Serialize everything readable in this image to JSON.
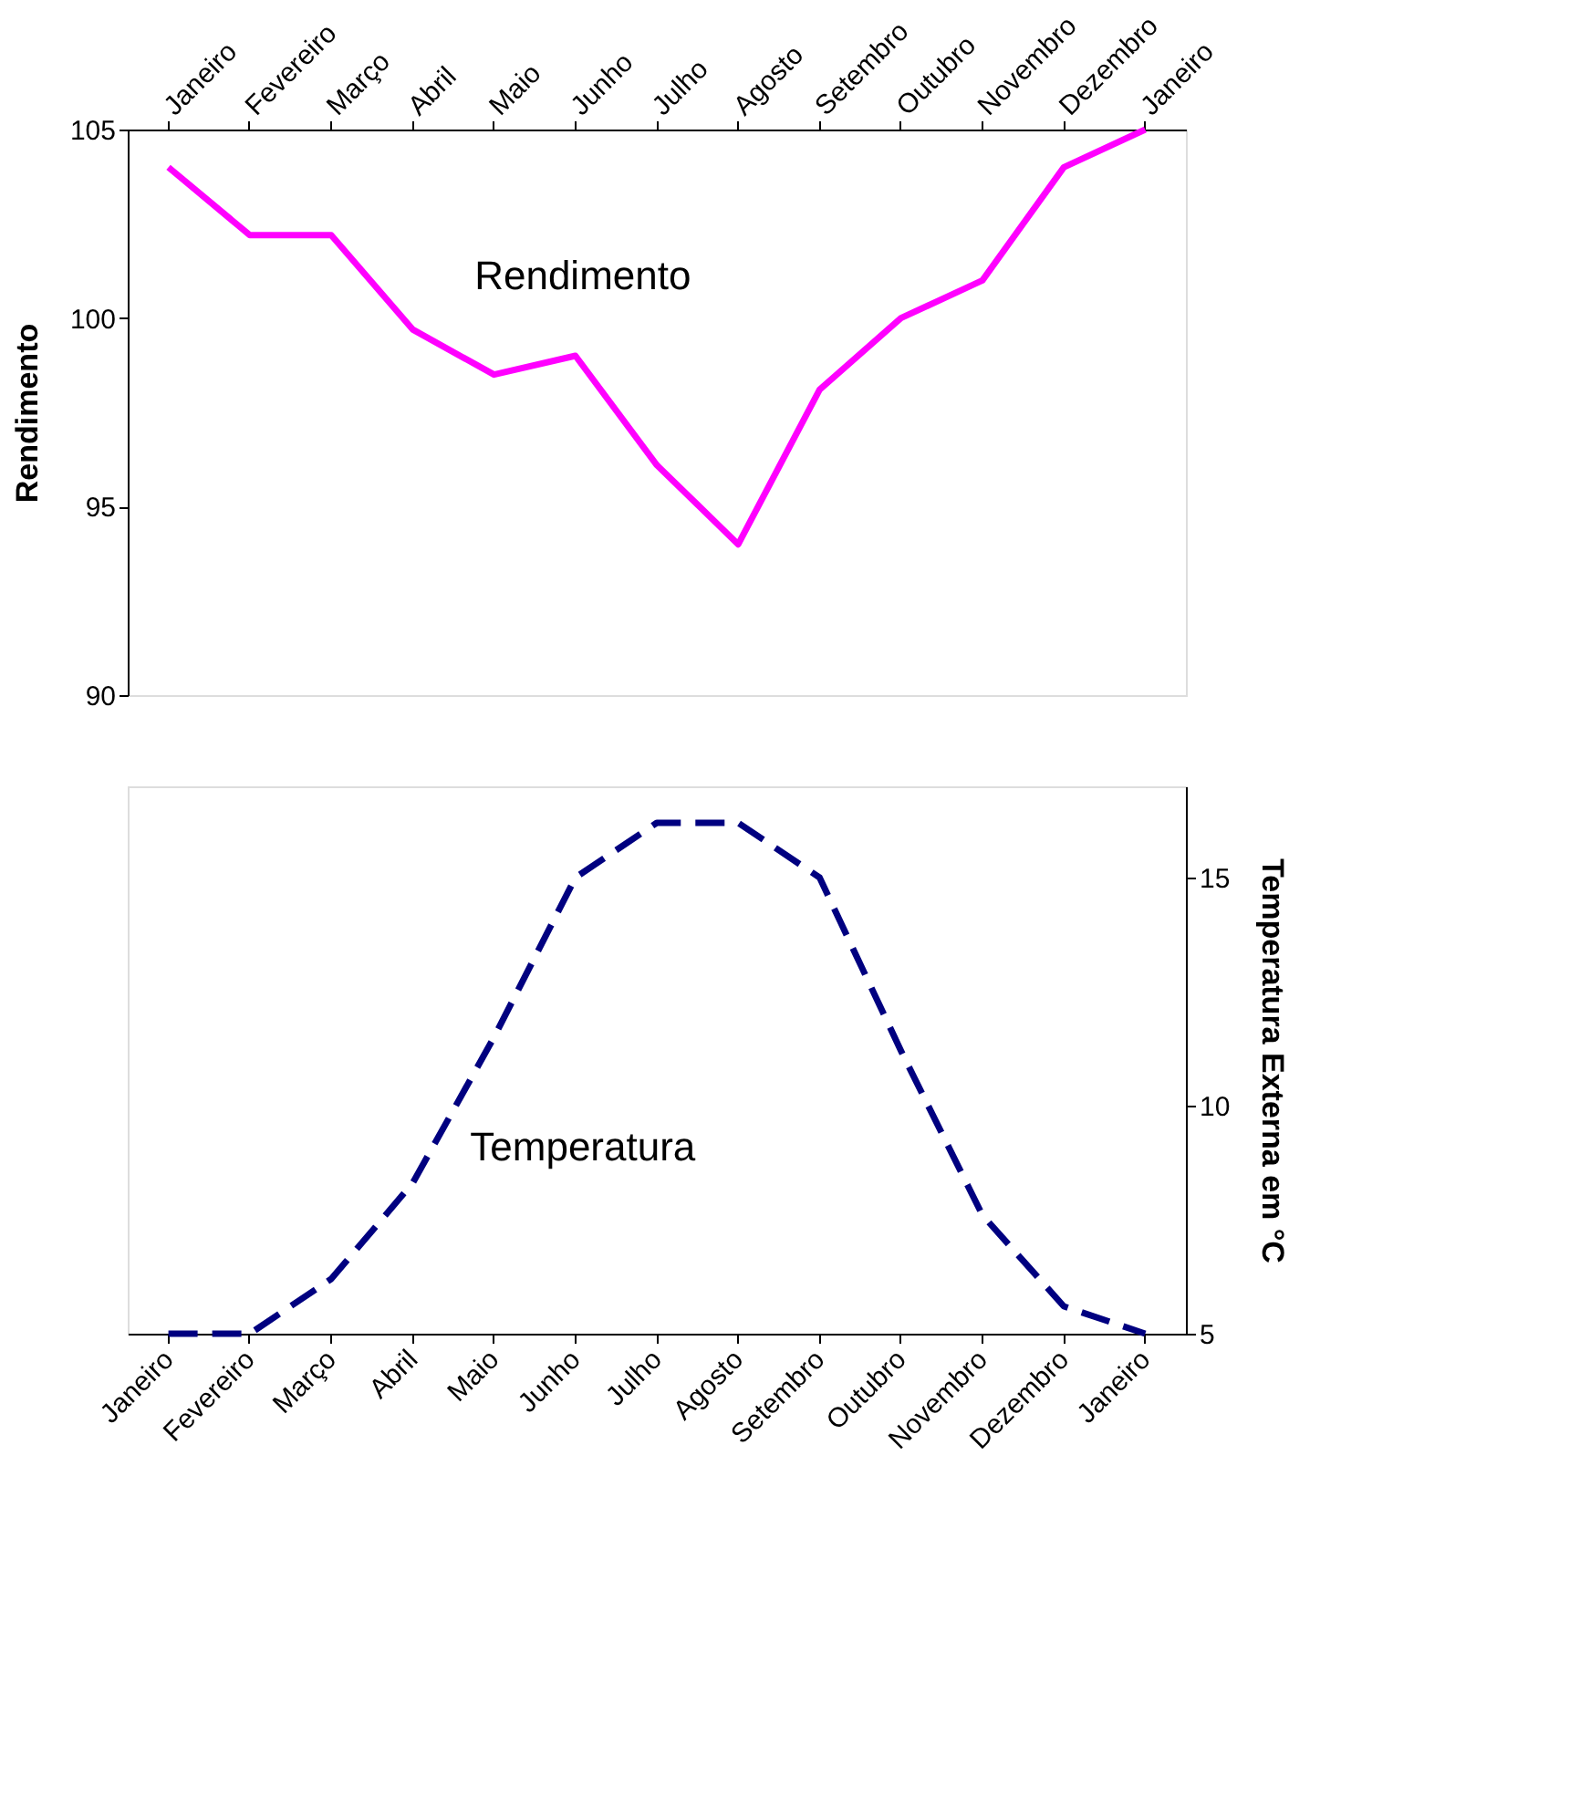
{
  "chart_data": [
    {
      "type": "line",
      "categories": [
        "Janeiro",
        "Fevereiro",
        "Março",
        "Abril",
        "Maio",
        "Junho",
        "Julho",
        "Agosto",
        "Setembro",
        "Outubro",
        "Novembro",
        "Dezembro",
        "Janeiro"
      ],
      "series": [
        {
          "name": "Rendimento",
          "color": "#ff00ff",
          "line_style": "solid",
          "values": [
            104.0,
            102.2,
            102.2,
            99.7,
            98.5,
            99.0,
            96.1,
            94.0,
            98.1,
            100.0,
            101.0,
            104.0,
            105.0
          ]
        }
      ],
      "ylabel": "Rendimento",
      "ylim": [
        90,
        105
      ],
      "yticks": [
        90,
        95,
        100,
        105
      ],
      "grid": false,
      "legend": false
    },
    {
      "type": "line",
      "categories": [
        "Janeiro",
        "Fevereiro",
        "Março",
        "Abril",
        "Maio",
        "Junho",
        "Julho",
        "Agosto",
        "Setembro",
        "Outubro",
        "Novembro",
        "Dezembro",
        "Janeiro"
      ],
      "series": [
        {
          "name": "Temperatura",
          "color": "#000080",
          "line_style": "dashed",
          "axis": "y2",
          "values": [
            5.0,
            5.0,
            6.2,
            8.3,
            11.5,
            15.0,
            16.2,
            16.2,
            15.0,
            11.2,
            7.6,
            5.6,
            5.0
          ]
        }
      ],
      "y2label": "Temperatura Externa em °C",
      "y2lim": [
        5,
        17
      ],
      "y2ticks": [
        5,
        10,
        15
      ],
      "grid": false,
      "legend": false
    }
  ]
}
